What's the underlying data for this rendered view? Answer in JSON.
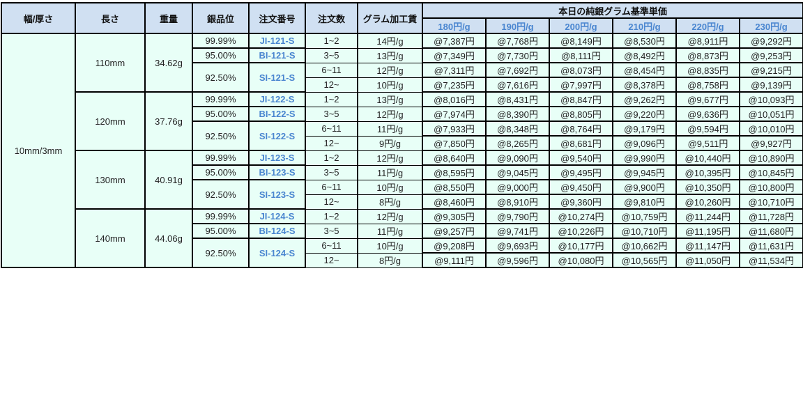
{
  "headers": {
    "width_thickness": "幅/厚さ",
    "length": "長さ",
    "weight": "重量",
    "purity": "銀品位",
    "order_no": "注文番号",
    "quantity": "注文数",
    "processing_fee": "グラム加工賃",
    "base_price_title": "本日の純銀グラム基準単価",
    "price_columns": [
      "180円/g",
      "190円/g",
      "200円/g",
      "210円/g",
      "220円/g",
      "230円/g"
    ]
  },
  "size": "10mm/3mm",
  "groups": [
    {
      "length": "110mm",
      "weight": "34.62g",
      "products": [
        {
          "purity": "99.99%",
          "code": "JI-121-S"
        },
        {
          "purity": "95.00%",
          "code": "BI-121-S"
        },
        {
          "purity": "92.50%",
          "code": "SI-121-S"
        }
      ],
      "rows": [
        {
          "qty": "1~2",
          "fee": "14円/g",
          "prices": [
            "@7,387円",
            "@7,768円",
            "@8,149円",
            "@8,530円",
            "@8,911円",
            "@9,292円"
          ]
        },
        {
          "qty": "3~5",
          "fee": "13円/g",
          "prices": [
            "@7,349円",
            "@7,730円",
            "@8,111円",
            "@8,492円",
            "@8,873円",
            "@9,253円"
          ]
        },
        {
          "qty": "6~11",
          "fee": "12円/g",
          "prices": [
            "@7,311円",
            "@7,692円",
            "@8,073円",
            "@8,454円",
            "@8,835円",
            "@9,215円"
          ]
        },
        {
          "qty": "12~",
          "fee": "10円/g",
          "prices": [
            "@7,235円",
            "@7,616円",
            "@7,997円",
            "@8,378円",
            "@8,758円",
            "@9,139円"
          ]
        }
      ]
    },
    {
      "length": "120mm",
      "weight": "37.76g",
      "products": [
        {
          "purity": "99.99%",
          "code": "JI-122-S"
        },
        {
          "purity": "95.00%",
          "code": "BI-122-S"
        },
        {
          "purity": "92.50%",
          "code": "SI-122-S"
        }
      ],
      "rows": [
        {
          "qty": "1~2",
          "fee": "13円/g",
          "prices": [
            "@8,016円",
            "@8,431円",
            "@8,847円",
            "@9,262円",
            "@9,677円",
            "@10,093円"
          ]
        },
        {
          "qty": "3~5",
          "fee": "12円/g",
          "prices": [
            "@7,974円",
            "@8,390円",
            "@8,805円",
            "@9,220円",
            "@9,636円",
            "@10,051円"
          ]
        },
        {
          "qty": "6~11",
          "fee": "11円/g",
          "prices": [
            "@7,933円",
            "@8,348円",
            "@8,764円",
            "@9,179円",
            "@9,594円",
            "@10,010円"
          ]
        },
        {
          "qty": "12~",
          "fee": "9円/g",
          "prices": [
            "@7,850円",
            "@8,265円",
            "@8,681円",
            "@9,096円",
            "@9,511円",
            "@9,927円"
          ]
        }
      ]
    },
    {
      "length": "130mm",
      "weight": "40.91g",
      "products": [
        {
          "purity": "99.99%",
          "code": "JI-123-S"
        },
        {
          "purity": "95.00%",
          "code": "BI-123-S"
        },
        {
          "purity": "92.50%",
          "code": "SI-123-S"
        }
      ],
      "rows": [
        {
          "qty": "1~2",
          "fee": "12円/g",
          "prices": [
            "@8,640円",
            "@9,090円",
            "@9,540円",
            "@9,990円",
            "@10,440円",
            "@10,890円"
          ]
        },
        {
          "qty": "3~5",
          "fee": "11円/g",
          "prices": [
            "@8,595円",
            "@9,045円",
            "@9,495円",
            "@9,945円",
            "@10,395円",
            "@10,845円"
          ]
        },
        {
          "qty": "6~11",
          "fee": "10円/g",
          "prices": [
            "@8,550円",
            "@9,000円",
            "@9,450円",
            "@9,900円",
            "@10,350円",
            "@10,800円"
          ]
        },
        {
          "qty": "12~",
          "fee": "8円/g",
          "prices": [
            "@8,460円",
            "@8,910円",
            "@9,360円",
            "@9,810円",
            "@10,260円",
            "@10,710円"
          ]
        }
      ]
    },
    {
      "length": "140mm",
      "weight": "44.06g",
      "products": [
        {
          "purity": "99.99%",
          "code": "JI-124-S"
        },
        {
          "purity": "95.00%",
          "code": "BI-124-S"
        },
        {
          "purity": "92.50%",
          "code": "SI-124-S"
        }
      ],
      "rows": [
        {
          "qty": "1~2",
          "fee": "12円/g",
          "prices": [
            "@9,305円",
            "@9,790円",
            "@10,274円",
            "@10,759円",
            "@11,244円",
            "@11,728円"
          ]
        },
        {
          "qty": "3~5",
          "fee": "11円/g",
          "prices": [
            "@9,257円",
            "@9,741円",
            "@10,226円",
            "@10,710円",
            "@11,195円",
            "@11,680円"
          ]
        },
        {
          "qty": "6~11",
          "fee": "10円/g",
          "prices": [
            "@9,208円",
            "@9,693円",
            "@10,177円",
            "@10,662円",
            "@11,147円",
            "@11,631円"
          ]
        },
        {
          "qty": "12~",
          "fee": "8円/g",
          "prices": [
            "@9,111円",
            "@9,596円",
            "@10,080円",
            "@10,565円",
            "@11,050円",
            "@11,534円"
          ]
        }
      ]
    }
  ]
}
